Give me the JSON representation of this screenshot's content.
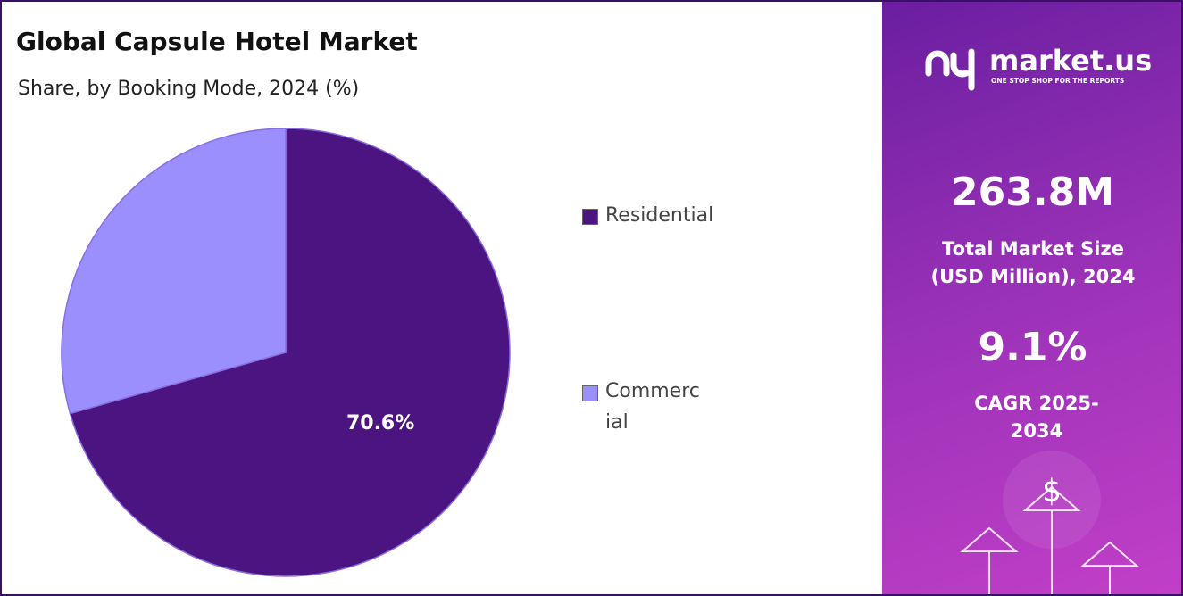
{
  "chart_data": {
    "type": "pie",
    "title": "Global Capsule Hotel Market",
    "subtitle": "Share, by Booking Mode, 2024 (%)",
    "categories": [
      "Residential",
      "Commercial"
    ],
    "values": [
      70.6,
      29.4
    ],
    "value_labels": [
      "70.6%",
      null
    ],
    "colors": [
      "#4b1480",
      "#9a8ffc"
    ],
    "legend": "right"
  },
  "panel": {
    "brand": "market.us",
    "tagline": "ONE STOP SHOP FOR THE REPORTS",
    "market_size": "263.8M",
    "market_size_label": "Total Market Size (USD Million), 2024",
    "cagr": "9.1%",
    "cagr_label": "CAGR 2025-2034",
    "icon": "$"
  }
}
